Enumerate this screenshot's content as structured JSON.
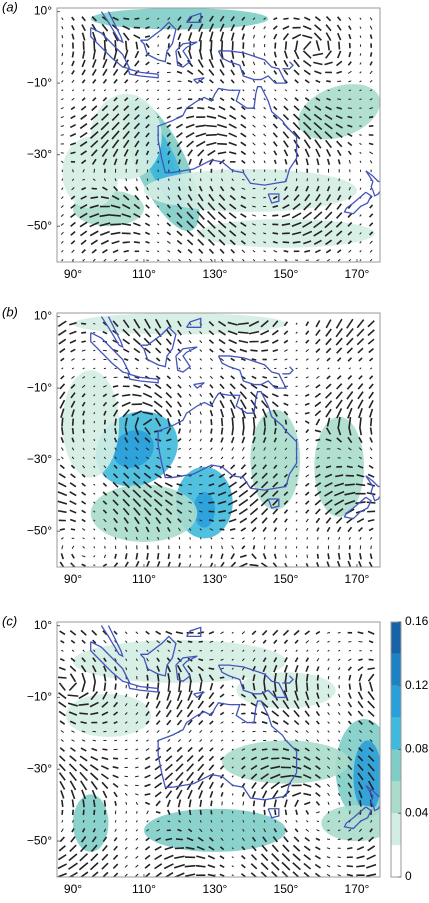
{
  "panels": [
    {
      "label": "(a)",
      "xlim": [
        85.5,
        176.5
      ],
      "ylim": [
        -60,
        11
      ],
      "xticks": [
        {
          "value": 90,
          "label": "90°"
        },
        {
          "value": 110,
          "label": "110°"
        },
        {
          "value": 130,
          "label": "130°"
        },
        {
          "value": 150,
          "label": "150°"
        },
        {
          "value": 170,
          "label": "170°"
        }
      ],
      "yticks": [
        {
          "value": 10,
          "label": "10°"
        },
        {
          "value": -10,
          "label": "−10°"
        },
        {
          "value": -30,
          "label": "−30°"
        },
        {
          "value": -50,
          "label": "−50°"
        }
      ]
    },
    {
      "label": "(b)",
      "xlim": [
        85.5,
        176.5
      ],
      "ylim": [
        -60,
        11
      ],
      "xticks": [
        {
          "value": 90,
          "label": "90°"
        },
        {
          "value": 110,
          "label": "110°"
        },
        {
          "value": 130,
          "label": "130°"
        },
        {
          "value": 150,
          "label": "150°"
        },
        {
          "value": 170,
          "label": "170°"
        }
      ],
      "yticks": [
        {
          "value": 10,
          "label": "10°"
        },
        {
          "value": -10,
          "label": "−10°"
        },
        {
          "value": -30,
          "label": "−30°"
        },
        {
          "value": -50,
          "label": "−50°"
        }
      ]
    },
    {
      "label": "(c)",
      "xlim": [
        85.5,
        176.5
      ],
      "ylim": [
        -60,
        11
      ],
      "xticks": [
        {
          "value": 90,
          "label": "90°"
        },
        {
          "value": 110,
          "label": "110°"
        },
        {
          "value": 130,
          "label": "130°"
        },
        {
          "value": 150,
          "label": "150°"
        },
        {
          "value": 170,
          "label": "170°"
        }
      ],
      "yticks": [
        {
          "value": 10,
          "label": "10°"
        },
        {
          "value": -10,
          "label": "−10°"
        },
        {
          "value": -30,
          "label": "−30°"
        },
        {
          "value": -50,
          "label": "−50°"
        }
      ]
    }
  ],
  "colorbar": {
    "lim": [
      0,
      0.16
    ],
    "ticks": [
      0,
      0.04,
      0.08,
      0.12,
      0.16
    ],
    "colors": [
      "#ffffff",
      "#d4ede3",
      "#a9dccb",
      "#7fcdc6",
      "#3fb9dc",
      "#2a9fd9",
      "#1d82c4",
      "#1663a8"
    ]
  }
}
